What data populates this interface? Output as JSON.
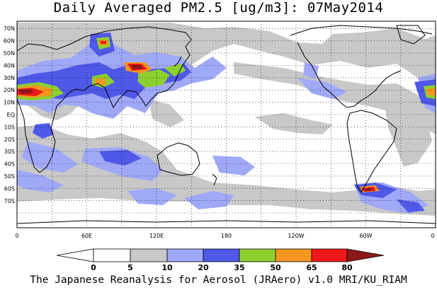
{
  "map": {
    "title": "Daily Averaged PM2.5 [ug/m3]: 07May2014",
    "footer": "The Japanese Reanalysis for Aerosol (JRAero) v1.0 MRI/KU_RIAM",
    "lat_labels": [
      "70N",
      "60N",
      "50N",
      "40N",
      "30N",
      "20N",
      "10N",
      "EQ",
      "10S",
      "20S",
      "30S",
      "40S",
      "50S",
      "60S",
      "70S"
    ],
    "lon_labels": [
      "0",
      "60E",
      "120E",
      "180",
      "120W",
      "60W",
      "0"
    ],
    "colorbar": {
      "labels": [
        "0",
        "5",
        "10",
        "20",
        "35",
        "50",
        "65",
        "80"
      ],
      "colors": [
        "#ffffff",
        "#c8c8c8",
        "#a0a8f8",
        "#5058e8",
        "#8cd030",
        "#f49620",
        "#f01818",
        "#8c1818"
      ]
    }
  }
}
